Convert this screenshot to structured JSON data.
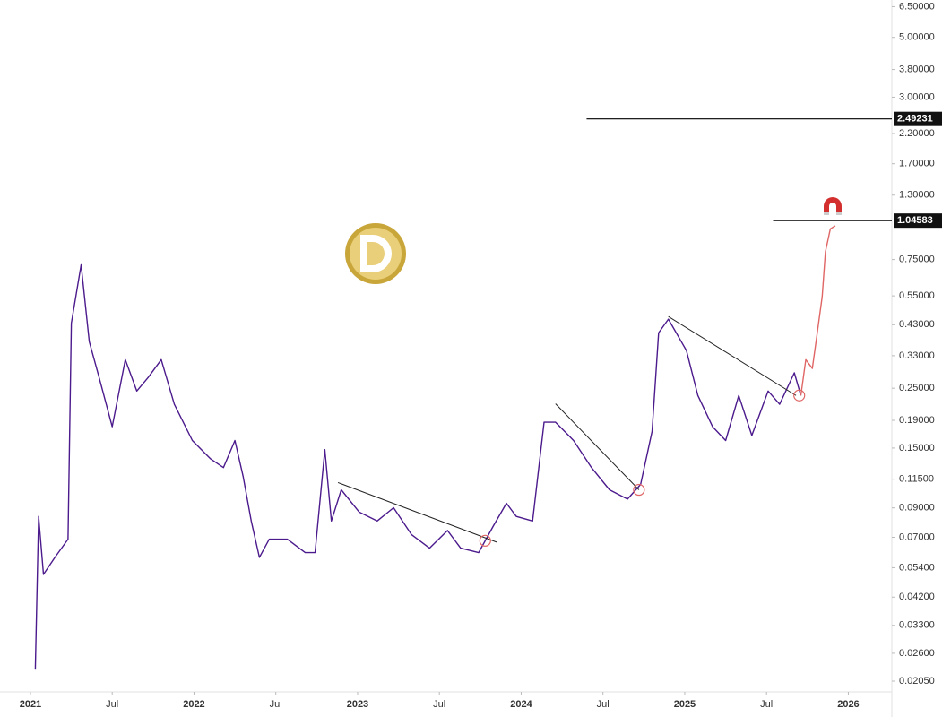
{
  "chart_data": {
    "type": "line",
    "log_scale": true,
    "xlim": [
      2020.814,
      2026.266
    ],
    "ylim": [
      0.0187,
      6.88
    ],
    "xticks": [
      {
        "value": 2021,
        "label": "2021"
      },
      {
        "value": 2021.5,
        "label": "Jul"
      },
      {
        "value": 2022,
        "label": "2022"
      },
      {
        "value": 2022.5,
        "label": "Jul"
      },
      {
        "value": 2023,
        "label": "2023"
      },
      {
        "value": 2023.5,
        "label": "Jul"
      },
      {
        "value": 2024,
        "label": "2024"
      },
      {
        "value": 2024.5,
        "label": "Jul"
      },
      {
        "value": 2025,
        "label": "2025"
      },
      {
        "value": 2025.5,
        "label": "Jul"
      },
      {
        "value": 2026,
        "label": "2026"
      }
    ],
    "yticks": [
      {
        "value": 6.5,
        "label": "6.50000"
      },
      {
        "value": 5,
        "label": "5.00000"
      },
      {
        "value": 3.8,
        "label": "3.80000"
      },
      {
        "value": 3,
        "label": "3.00000"
      },
      {
        "value": 2.2,
        "label": "2.20000"
      },
      {
        "value": 1.7,
        "label": "1.70000"
      },
      {
        "value": 1.3,
        "label": "1.30000"
      },
      {
        "value": 0.75,
        "label": "0.75000"
      },
      {
        "value": 0.55,
        "label": "0.55000"
      },
      {
        "value": 0.43,
        "label": "0.43000"
      },
      {
        "value": 0.33,
        "label": "0.33000"
      },
      {
        "value": 0.25,
        "label": "0.25000"
      },
      {
        "value": 0.19,
        "label": "0.19000"
      },
      {
        "value": 0.15,
        "label": "0.15000"
      },
      {
        "value": 0.115,
        "label": "0.11500"
      },
      {
        "value": 0.09,
        "label": "0.09000"
      },
      {
        "value": 0.07,
        "label": "0.07000"
      },
      {
        "value": 0.054,
        "label": "0.05400"
      },
      {
        "value": 0.042,
        "label": "0.04200"
      },
      {
        "value": 0.033,
        "label": "0.03300"
      },
      {
        "value": 0.026,
        "label": "0.02600"
      },
      {
        "value": 0.0205,
        "label": "0.02050"
      }
    ],
    "series": [
      {
        "color": "#4b1a8c",
        "x": [
          2021.03,
          2021.05,
          2021.08,
          2021.15,
          2021.23,
          2021.25,
          2021.31,
          2021.36,
          2021.42,
          2021.5,
          2021.58,
          2021.65,
          2021.72,
          2021.8,
          2021.88,
          2021.99,
          2022.1,
          2022.18,
          2022.25,
          2022.3,
          2022.35,
          2022.4,
          2022.46,
          2022.57,
          2022.68,
          2022.74,
          2022.8,
          2022.84,
          2022.9,
          2023.01,
          2023.12,
          2023.22,
          2023.33,
          2023.44,
          2023.55,
          2023.63,
          2023.74,
          2023.83,
          2023.91,
          2023.97,
          2024.07,
          2024.14,
          2024.21,
          2024.32,
          2024.43,
          2024.54,
          2024.65,
          2024.73,
          2024.8,
          2024.84,
          2024.9,
          2025.01,
          2025.08,
          2025.17,
          2025.25,
          2025.33,
          2025.41,
          2025.51,
          2025.58,
          2025.67,
          2025.71
        ],
        "values": [
          0.0226,
          0.0837,
          0.051,
          0.059,
          0.0689,
          0.435,
          0.717,
          0.372,
          0.274,
          0.18,
          0.319,
          0.244,
          0.274,
          0.319,
          0.218,
          0.16,
          0.137,
          0.127,
          0.16,
          0.118,
          0.0805,
          0.059,
          0.0689,
          0.0689,
          0.0614,
          0.0614,
          0.148,
          0.0805,
          0.105,
          0.0868,
          0.0805,
          0.0901,
          0.0716,
          0.0638,
          0.0742,
          0.0638,
          0.0614,
          0.0771,
          0.0936,
          0.0837,
          0.0805,
          0.187,
          0.187,
          0.16,
          0.127,
          0.105,
          0.097,
          0.11,
          0.173,
          0.401,
          0.451,
          0.345,
          0.235,
          0.18,
          0.16,
          0.235,
          0.167,
          0.244,
          0.218,
          0.285,
          0.235
        ]
      },
      {
        "color": "#e06666",
        "x": [
          2025.71,
          2025.74,
          2025.78,
          2025.81,
          2025.84,
          2025.86,
          2025.89,
          2025.92
        ],
        "values": [
          0.235,
          0.319,
          0.296,
          0.401,
          0.547,
          0.802,
          0.975,
          1.0
        ]
      }
    ],
    "trendlines": [
      {
        "x": [
          2022.88,
          2023.85
        ],
        "values": [
          0.1117,
          0.0672
        ]
      },
      {
        "x": [
          2024.21,
          2024.72
        ],
        "values": [
          0.219,
          0.105
        ]
      },
      {
        "x": [
          2024.9,
          2025.68
        ],
        "values": [
          0.461,
          0.235
        ]
      }
    ],
    "markers": [
      {
        "x": 2023.78,
        "value": 0.068
      },
      {
        "x": 2024.72,
        "value": 0.105
      },
      {
        "x": 2025.7,
        "value": 0.235
      }
    ],
    "levels": [
      {
        "value": 2.49231,
        "x_start": 2024.4
      },
      {
        "value": 1.04583,
        "x_start": 2025.54
      }
    ]
  }
}
